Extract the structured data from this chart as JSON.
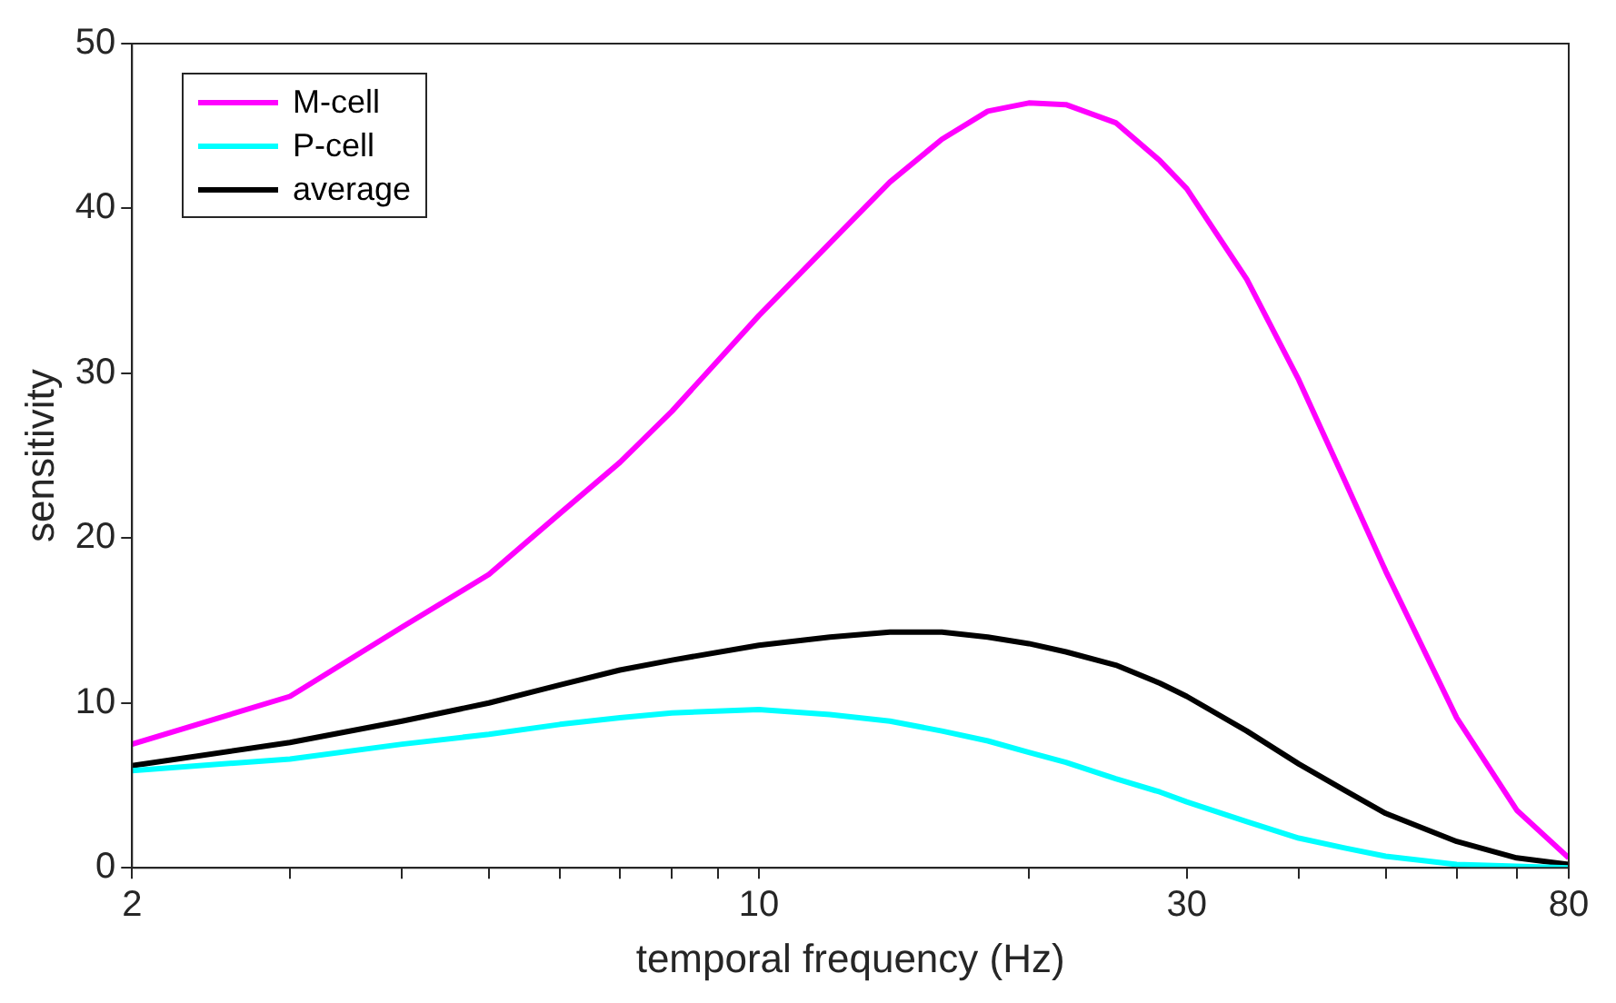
{
  "chart_data": {
    "type": "line",
    "xlabel": "temporal frequency (Hz)",
    "ylabel": "sensitivity",
    "log": "x",
    "xlim": [
      2,
      80
    ],
    "ylim": [
      0,
      50
    ],
    "xticks": [
      2,
      {
        "value": 3,
        "label": null
      },
      {
        "value": 4,
        "label": null
      },
      {
        "value": 5,
        "label": null
      },
      {
        "value": 6,
        "label": null
      },
      {
        "value": 7,
        "label": null
      },
      {
        "value": 8,
        "label": null
      },
      {
        "value": 9,
        "label": null
      },
      10,
      {
        "value": 20,
        "label": null
      },
      30,
      {
        "value": 40,
        "label": null
      },
      {
        "value": 50,
        "label": null
      },
      {
        "value": 60,
        "label": null
      },
      {
        "value": 70,
        "label": null
      },
      80
    ],
    "yticks": [
      0,
      10,
      20,
      30,
      40,
      50
    ],
    "grid": false,
    "legend": "top left",
    "marker": "none",
    "line_style": "solid",
    "x": [
      2,
      3,
      4,
      5,
      6,
      7,
      8,
      10,
      12,
      14,
      16,
      18,
      20,
      22,
      25,
      28,
      30,
      35,
      40,
      45,
      50,
      60,
      70,
      80
    ],
    "series": [
      {
        "name": "M-cell",
        "color": "#ff00ff",
        "values": [
          7.5,
          10.4,
          14.6,
          17.8,
          21.5,
          24.6,
          27.7,
          33.5,
          37.9,
          41.6,
          44.2,
          45.9,
          46.4,
          46.3,
          45.2,
          42.9,
          41.2,
          35.7,
          29.6,
          23.5,
          18,
          9.1,
          3.5,
          0.6
        ]
      },
      {
        "name": "P-cell",
        "color": "#00ffff",
        "values": [
          5.9,
          6.6,
          7.5,
          8.1,
          8.7,
          9.1,
          9.4,
          9.6,
          9.3,
          8.9,
          8.3,
          7.7,
          7,
          6.4,
          5.4,
          4.6,
          4,
          2.8,
          1.8,
          1.2,
          0.7,
          0.2,
          0.1,
          0
        ]
      },
      {
        "name": "average",
        "color": "#000000",
        "values": [
          6.2,
          7.6,
          8.9,
          10,
          11.1,
          12,
          12.6,
          13.5,
          14,
          14.3,
          14.3,
          14,
          13.6,
          13.1,
          12.3,
          11.2,
          10.4,
          8.3,
          6.3,
          4.7,
          3.3,
          1.6,
          0.6,
          0.2
        ]
      }
    ]
  }
}
